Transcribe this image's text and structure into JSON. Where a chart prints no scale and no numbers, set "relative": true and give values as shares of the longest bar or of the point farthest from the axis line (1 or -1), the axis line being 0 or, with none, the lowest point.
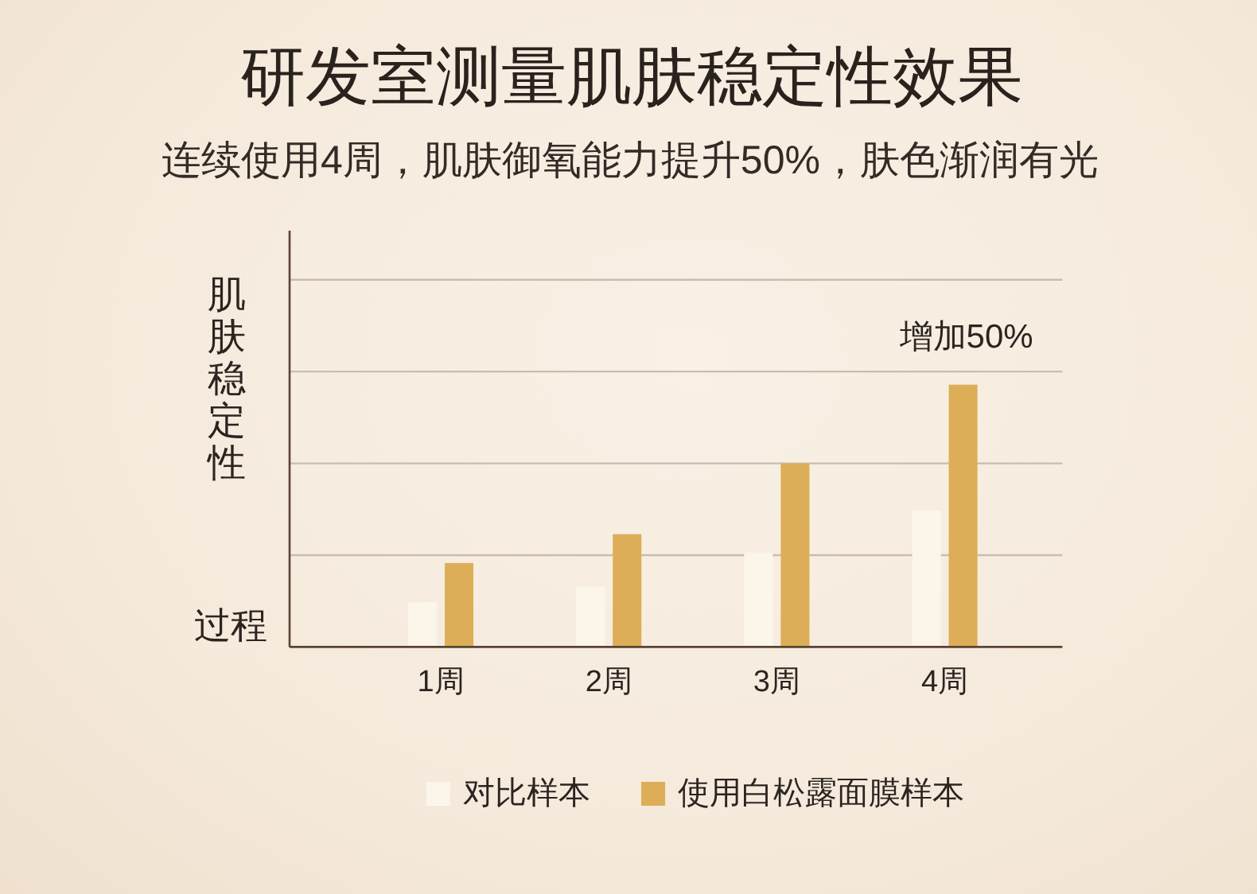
{
  "chart_data": {
    "type": "bar",
    "title": "研发室测量肌肤稳定性效果",
    "subtitle": "连续使用4周，肌肤御氧能力提升50%，肤色渐润有光",
    "ylabel": "肌肤稳定性",
    "xlabel": "过程",
    "categories": [
      "1周",
      "2周",
      "3周",
      "4周"
    ],
    "series": [
      {
        "name": "对比样本",
        "color": "#fcf6ea",
        "values": [
          0.17,
          0.23,
          0.36,
          0.52
        ]
      },
      {
        "name": "使用白松露面膜样本",
        "color": "#dcae57",
        "values": [
          0.32,
          0.43,
          0.7,
          1
        ]
      }
    ],
    "relative": true,
    "legend": "bottom",
    "ref_lines": [
      {
        "axis": "y",
        "value": 0.35,
        "color": "#c9bdb0"
      },
      {
        "axis": "y",
        "value": 0.7,
        "color": "#c9bdb0"
      },
      {
        "axis": "y",
        "value": 1.05,
        "color": "#c9bdb0"
      },
      {
        "axis": "y",
        "value": 1.4,
        "color": "#c9bdb0"
      }
    ],
    "annotations": [
      {
        "text": "增加50%",
        "x": "4周",
        "y": 1
      }
    ]
  }
}
